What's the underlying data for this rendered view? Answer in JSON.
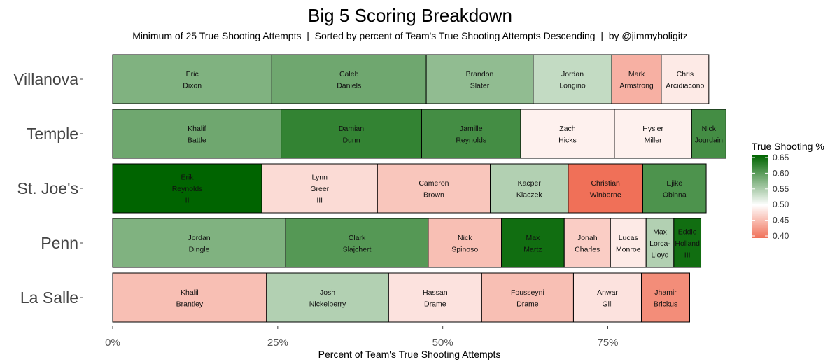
{
  "chart_data": {
    "type": "bar",
    "orientation": "horizontal-stacked",
    "title": "Big 5 Scoring Breakdown",
    "subtitle": "Minimum of 25 True Shooting Attempts  |  Sorted by percent of Team's True Shooting Attempts Descending  |  by @jimmyboligitz",
    "xlabel": "Percent of Team's True Shooting Attempts",
    "ylabel": "",
    "xlim": [
      0,
      0.9
    ],
    "xticks": [
      {
        "value": 0,
        "label": "0%"
      },
      {
        "value": 0.25,
        "label": "25%"
      },
      {
        "value": 0.5,
        "label": "50%"
      },
      {
        "value": 0.75,
        "label": "75%"
      }
    ],
    "legend": {
      "title": "True Shooting %",
      "placement": "right",
      "range": [
        0.4,
        0.65
      ],
      "ticks": [
        "0.65",
        "0.60",
        "0.55",
        "0.50",
        "0.45",
        "0.40"
      ],
      "low_color": "#F07058",
      "mid_color": "#FFFFFF",
      "mid_value": 0.5,
      "high_color": "#006400"
    },
    "teams": [
      {
        "team": "Villanova",
        "players": [
          {
            "name": [
              "Eric",
              "Dixon"
            ],
            "share": 0.241,
            "ts": 0.575
          },
          {
            "name": [
              "Caleb",
              "Daniels"
            ],
            "share": 0.234,
            "ts": 0.585
          },
          {
            "name": [
              "Brandon",
              "Slater"
            ],
            "share": 0.162,
            "ts": 0.565
          },
          {
            "name": [
              "Jordan",
              "Longino"
            ],
            "share": 0.119,
            "ts": 0.535
          },
          {
            "name": [
              "Mark",
              "Armstrong"
            ],
            "share": 0.075,
            "ts": 0.445
          },
          {
            "name": [
              "Chris",
              "Arcidiacono"
            ],
            "share": 0.072,
            "ts": 0.485
          }
        ]
      },
      {
        "team": "Temple",
        "players": [
          {
            "name": [
              "Khalif",
              "Battle"
            ],
            "share": 0.255,
            "ts": 0.585
          },
          {
            "name": [
              "Damian",
              "Dunn"
            ],
            "share": 0.213,
            "ts": 0.62
          },
          {
            "name": [
              "Jamille",
              "Reynolds"
            ],
            "share": 0.15,
            "ts": 0.61
          },
          {
            "name": [
              "Zach",
              "Hicks"
            ],
            "share": 0.142,
            "ts": 0.49
          },
          {
            "name": [
              "Hysier",
              "Miller"
            ],
            "share": 0.117,
            "ts": 0.49
          },
          {
            "name": [
              "Nick",
              "Jourdain"
            ],
            "share": 0.052,
            "ts": 0.61
          }
        ]
      },
      {
        "team": "St. Joe's",
        "players": [
          {
            "name": [
              "Erik",
              "Reynolds",
              "II"
            ],
            "share": 0.226,
            "ts": 0.65
          },
          {
            "name": [
              "Lynn",
              "Greer",
              "III"
            ],
            "share": 0.175,
            "ts": 0.475
          },
          {
            "name": [
              "Cameron",
              "Brown"
            ],
            "share": 0.171,
            "ts": 0.46
          },
          {
            "name": [
              "Kacper",
              "Klaczek"
            ],
            "share": 0.118,
            "ts": 0.545
          },
          {
            "name": [
              "Christian",
              "Winborne"
            ],
            "share": 0.113,
            "ts": 0.4
          },
          {
            "name": [
              "Ejike",
              "Obinna"
            ],
            "share": 0.096,
            "ts": 0.605
          }
        ]
      },
      {
        "team": "Penn",
        "players": [
          {
            "name": [
              "Jordan",
              "Dingle"
            ],
            "share": 0.262,
            "ts": 0.575
          },
          {
            "name": [
              "Clark",
              "Slajchert"
            ],
            "share": 0.216,
            "ts": 0.6
          },
          {
            "name": [
              "Nick",
              "Spinoso"
            ],
            "share": 0.111,
            "ts": 0.455
          },
          {
            "name": [
              "Max",
              "Martz"
            ],
            "share": 0.095,
            "ts": 0.64
          },
          {
            "name": [
              "Jonah",
              "Charles"
            ],
            "share": 0.07,
            "ts": 0.465
          },
          {
            "name": [
              "Lucas",
              "Monroe"
            ],
            "share": 0.054,
            "ts": 0.485
          },
          {
            "name": [
              "Max",
              "Lorca-",
              "Lloyd"
            ],
            "share": 0.042,
            "ts": 0.545
          },
          {
            "name": [
              "Eddie",
              "Holland",
              "III"
            ],
            "share": 0.041,
            "ts": 0.64
          }
        ]
      },
      {
        "team": "La Salle",
        "players": [
          {
            "name": [
              "Khalil",
              "Brantley"
            ],
            "share": 0.233,
            "ts": 0.455
          },
          {
            "name": [
              "Josh",
              "Nickelberry"
            ],
            "share": 0.185,
            "ts": 0.545
          },
          {
            "name": [
              "Hassan",
              "Drame"
            ],
            "share": 0.141,
            "ts": 0.48
          },
          {
            "name": [
              "Fousseyni",
              "Drame"
            ],
            "share": 0.139,
            "ts": 0.455
          },
          {
            "name": [
              "Anwar",
              "Gill"
            ],
            "share": 0.103,
            "ts": 0.48
          },
          {
            "name": [
              "Jhamir",
              "Brickus"
            ],
            "share": 0.073,
            "ts": 0.42
          }
        ]
      }
    ]
  }
}
